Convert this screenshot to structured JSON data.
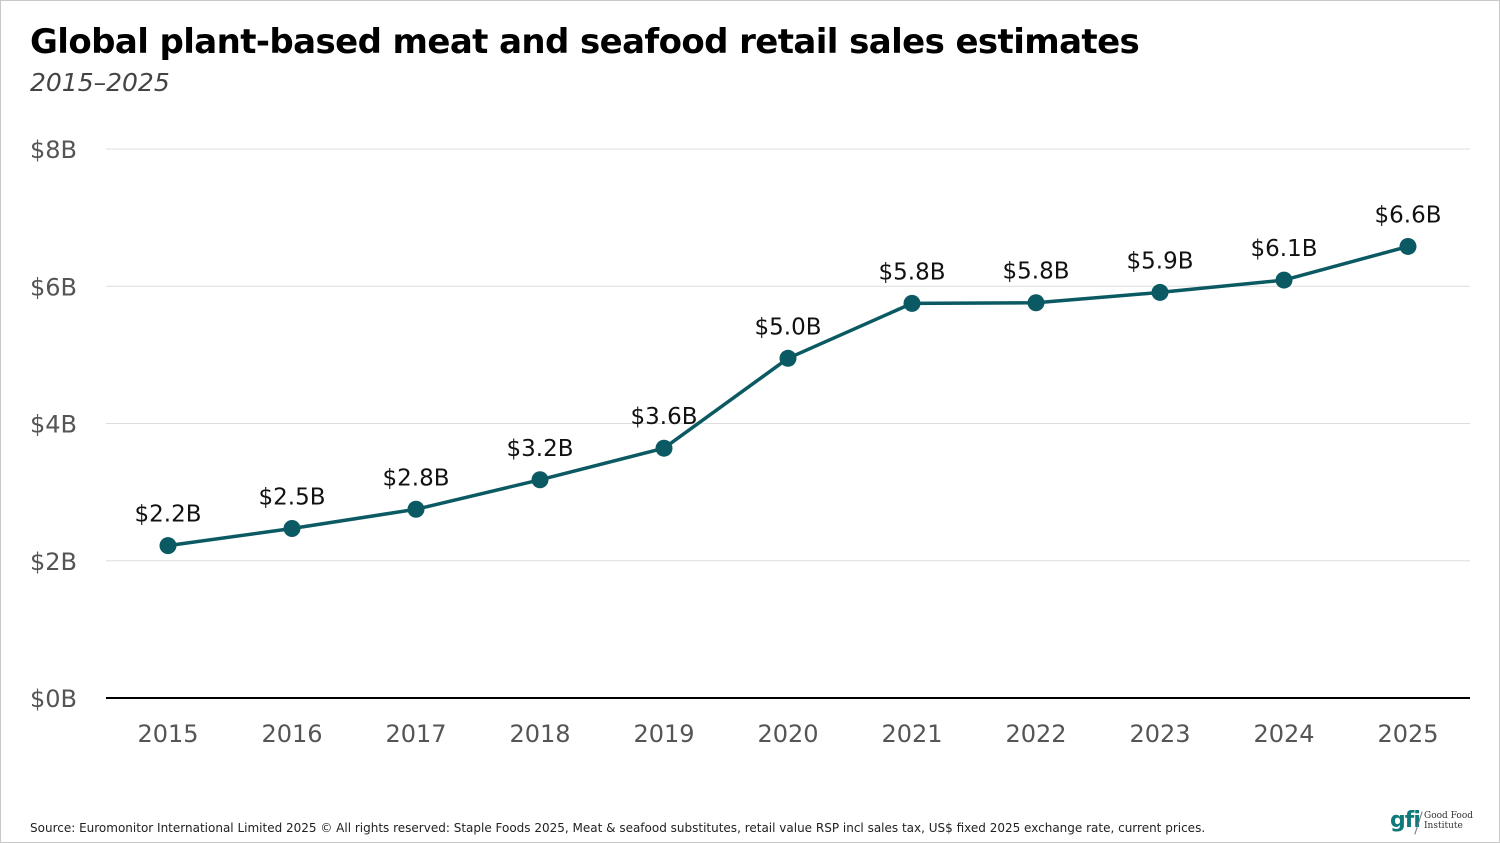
{
  "title": "Global plant-based meat and seafood retail sales estimates",
  "subtitle": "2015–2025",
  "source": "Source: Euromonitor International Limited 2025 © All rights reserved: Staple Foods 2025, Meat & seafood substitutes, retail value RSP incl sales tax, US$ fixed 2025 exchange rate, current prices.",
  "logo": {
    "mark": "gfi",
    "line1": "Good Food",
    "line2": "Institute"
  },
  "colors": {
    "line": "#0b5a63",
    "grid": "#dddddd",
    "axis": "#000000",
    "tick_text": "#555555",
    "label_text": "#111111"
  },
  "chart_data": {
    "type": "line",
    "categories": [
      "2015",
      "2016",
      "2017",
      "2018",
      "2019",
      "2020",
      "2021",
      "2022",
      "2023",
      "2024",
      "2025"
    ],
    "values": [
      2.22,
      2.47,
      2.75,
      3.18,
      3.64,
      4.95,
      5.75,
      5.76,
      5.91,
      6.09,
      6.58
    ],
    "data_labels": [
      "$2.2B",
      "$2.5B",
      "$2.8B",
      "$3.2B",
      "$3.6B",
      "$5.0B",
      "$5.8B",
      "$5.8B",
      "$5.9B",
      "$6.1B",
      "$6.6B"
    ],
    "ylim": [
      0,
      8
    ],
    "yticks": [
      0,
      2,
      4,
      6,
      8
    ],
    "ytick_labels": [
      "$0B",
      "$2B",
      "$4B",
      "$6B",
      "$8B"
    ],
    "xlabel": "",
    "ylabel": "",
    "grid": true,
    "legend": "none"
  }
}
